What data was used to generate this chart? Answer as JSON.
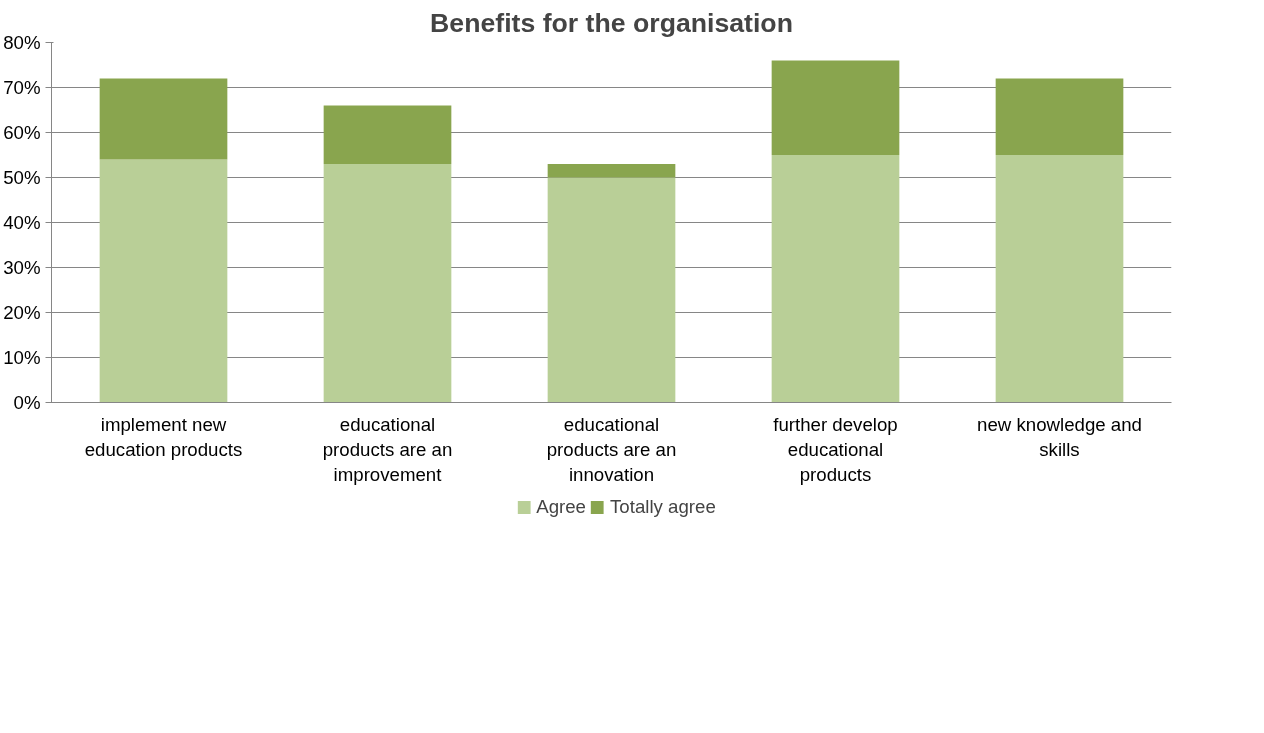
{
  "chart_data": {
    "type": "bar",
    "title": "Benefits for the organisation",
    "stacked": true,
    "categories": [
      "implement new education products",
      "educational products are an improvement",
      "educational products are an innovation",
      "further develop educational products",
      "new knowledge and skills"
    ],
    "series": [
      {
        "name": "Agree",
        "color": "#b9cf97",
        "values": [
          54,
          53,
          50,
          55,
          55
        ]
      },
      {
        "name": "Totally agree",
        "color": "#89a54e",
        "values": [
          18,
          13,
          3,
          21,
          17
        ]
      }
    ],
    "ylim": [
      0,
      80
    ],
    "yticks": [
      {
        "value": 0,
        "label": "0%"
      },
      {
        "value": 10,
        "label": "10%"
      },
      {
        "value": 20,
        "label": "20%"
      },
      {
        "value": 30,
        "label": "30%"
      },
      {
        "value": 40,
        "label": "40%"
      },
      {
        "value": 50,
        "label": "50%"
      },
      {
        "value": 60,
        "label": "60%"
      },
      {
        "value": 70,
        "label": "70%"
      },
      {
        "value": 80,
        "label": "80%"
      }
    ],
    "grid": "y",
    "legend": "bottom"
  }
}
